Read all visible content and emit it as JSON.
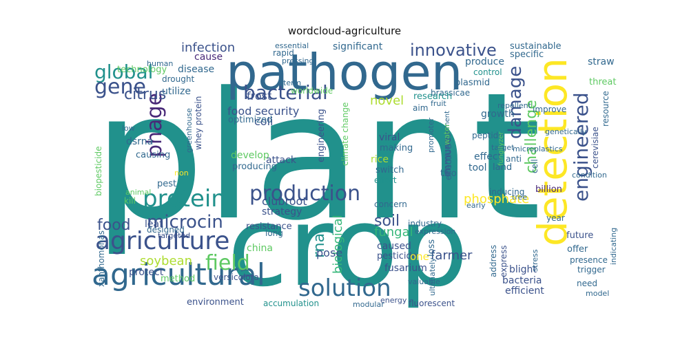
{
  "title": "wordcloud-agriculture",
  "colors": {
    "teal": "#21918c",
    "navy": "#3b528b",
    "purple": "#482878",
    "green": "#5ec962",
    "lime": "#addc30",
    "yellow": "#fde725",
    "blue": "#31688e",
    "seagreen": "#35b779"
  },
  "words": [
    {
      "text": "plant",
      "color": "#21918c"
    },
    {
      "text": "crop",
      "color": "#21918c"
    },
    {
      "text": "pathogen",
      "color": "#31688e"
    },
    {
      "text": "detection",
      "color": "#fde725"
    },
    {
      "text": "agricultural",
      "color": "#31688e"
    },
    {
      "text": "solution",
      "color": "#31688e"
    },
    {
      "text": "agriculture",
      "color": "#3b528b"
    },
    {
      "text": "production",
      "color": "#3b528b"
    },
    {
      "text": "protein",
      "color": "#21918c"
    },
    {
      "text": "bacterial",
      "color": "#3b528b"
    },
    {
      "text": "microcin",
      "color": "#3b528b"
    },
    {
      "text": "phage",
      "color": "#482878"
    },
    {
      "text": "global",
      "color": "#21918c"
    },
    {
      "text": "gene",
      "color": "#3b528b"
    },
    {
      "text": "field",
      "color": "#5ec962"
    },
    {
      "text": "engineered",
      "color": "#3b528b"
    },
    {
      "text": "damage",
      "color": "#3b528b"
    },
    {
      "text": "challenge",
      "color": "#5ec962"
    },
    {
      "text": "innovative",
      "color": "#3b528b"
    },
    {
      "text": "infection",
      "color": "#3b528b"
    },
    {
      "text": "citrus",
      "color": "#3b528b"
    },
    {
      "text": "phosphate",
      "color": "#fde725"
    },
    {
      "text": "soil",
      "color": "#3b528b"
    },
    {
      "text": "food",
      "color": "#3b528b"
    },
    {
      "text": "soybean",
      "color": "#addc30"
    },
    {
      "text": "novel",
      "color": "#addc30"
    },
    {
      "text": "rna",
      "color": "#21918c"
    },
    {
      "text": "biological",
      "color": "#35b779"
    },
    {
      "text": "fungal",
      "color": "#35b779"
    },
    {
      "text": "farmer",
      "color": "#3b528b"
    },
    {
      "text": "food security",
      "color": "#3b528b"
    },
    {
      "text": "frost",
      "color": "#3b528b"
    },
    {
      "text": "coli",
      "color": "#3b528b"
    },
    {
      "text": "clubroot",
      "color": "#3b528b"
    },
    {
      "text": "significant",
      "color": "#31688e"
    },
    {
      "text": "technology",
      "color": "#5ec962"
    },
    {
      "text": "disease",
      "color": "#31688e"
    },
    {
      "text": "cause",
      "color": "#482878"
    },
    {
      "text": "utilize",
      "color": "#31688e"
    },
    {
      "text": "sustainable",
      "color": "#31688e"
    },
    {
      "text": "specific",
      "color": "#31688e"
    },
    {
      "text": "straw",
      "color": "#31688e"
    },
    {
      "text": "produce",
      "color": "#31688e"
    },
    {
      "text": "control",
      "color": "#21918c"
    },
    {
      "text": "plasmid",
      "color": "#31688e"
    },
    {
      "text": "brassicae",
      "color": "#31688e"
    },
    {
      "text": "research",
      "color": "#21918c"
    },
    {
      "text": "growth",
      "color": "#31688e"
    },
    {
      "text": "threat",
      "color": "#5ec962"
    },
    {
      "text": "resource",
      "color": "#31688e"
    },
    {
      "text": "cerevisiae",
      "color": "#3b528b"
    },
    {
      "text": "genetically",
      "color": "#31688e"
    },
    {
      "text": "improve",
      "color": "#31688e"
    },
    {
      "text": "optimized",
      "color": "#31688e"
    },
    {
      "text": "dsrna",
      "color": "#31688e"
    },
    {
      "text": "causing",
      "color": "#31688e"
    },
    {
      "text": "develop",
      "color": "#5ec962"
    },
    {
      "text": "producing",
      "color": "#31688e"
    },
    {
      "text": "greenhouse",
      "color": "#31688e"
    },
    {
      "text": "attack",
      "color": "#3b528b"
    },
    {
      "text": "engineering",
      "color": "#3b528b"
    },
    {
      "text": "climate change",
      "color": "#5ec962"
    },
    {
      "text": "rice",
      "color": "#addc30"
    },
    {
      "text": "switch",
      "color": "#31688e"
    },
    {
      "text": "effort",
      "color": "#21918c"
    },
    {
      "text": "viral",
      "color": "#3b528b"
    },
    {
      "text": "making",
      "color": "#31688e"
    },
    {
      "text": "immune",
      "color": "#3b528b"
    },
    {
      "text": "two",
      "color": "#31688e"
    },
    {
      "text": "effect",
      "color": "#31688e"
    },
    {
      "text": "tool",
      "color": "#31688e"
    },
    {
      "text": "land",
      "color": "#31688e"
    },
    {
      "text": "peptide",
      "color": "#31688e"
    },
    {
      "text": "target",
      "color": "#31688e"
    },
    {
      "text": "cell",
      "color": "#31688e"
    },
    {
      "text": "tree",
      "color": "#31688e"
    },
    {
      "text": "billion",
      "color": "#482878"
    },
    {
      "text": "condition",
      "color": "#31688e"
    },
    {
      "text": "inducing",
      "color": "#31688e"
    },
    {
      "text": "early",
      "color": "#31688e"
    },
    {
      "text": "industry",
      "color": "#31688e"
    },
    {
      "text": "concern",
      "color": "#31688e"
    },
    {
      "text": "strategy",
      "color": "#3b528b"
    },
    {
      "text": "resistance",
      "color": "#3b528b"
    },
    {
      "text": "long",
      "color": "#31688e"
    },
    {
      "text": "leaf",
      "color": "#3b528b"
    },
    {
      "text": "designed",
      "color": "#31688e"
    },
    {
      "text": "targeted",
      "color": "#3b528b"
    },
    {
      "text": "china",
      "color": "#5ec962"
    },
    {
      "text": "pose",
      "color": "#3b528b"
    },
    {
      "text": "caused",
      "color": "#3b528b"
    },
    {
      "text": "pesticide",
      "color": "#3b528b"
    },
    {
      "text": "fusarium",
      "color": "#3b528b"
    },
    {
      "text": "protect",
      "color": "#3b528b"
    },
    {
      "text": "method",
      "color": "#5ec962"
    },
    {
      "text": "versicolora",
      "color": "#3b528b"
    },
    {
      "text": "environment",
      "color": "#3b528b"
    },
    {
      "text": "accumulation",
      "color": "#21918c"
    },
    {
      "text": "modular",
      "color": "#31688e"
    },
    {
      "text": "energy",
      "color": "#3b528b"
    },
    {
      "text": "fluorescent",
      "color": "#3b528b"
    },
    {
      "text": "efficient",
      "color": "#3b528b"
    },
    {
      "text": "bacteria",
      "color": "#3b528b"
    },
    {
      "text": "blight",
      "color": "#3b528b"
    },
    {
      "text": "valuable",
      "color": "#31688e"
    },
    {
      "text": "one",
      "color": "#fde725"
    },
    {
      "text": "expression",
      "color": "#31688e"
    },
    {
      "text": "loss",
      "color": "#31688e"
    },
    {
      "text": "ultimately",
      "color": "#31688e"
    },
    {
      "text": "address",
      "color": "#31688e"
    },
    {
      "text": "express",
      "color": "#3b528b"
    },
    {
      "text": "stress",
      "color": "#31688e"
    },
    {
      "text": "future",
      "color": "#3b528b"
    },
    {
      "text": "offer",
      "color": "#31688e"
    },
    {
      "text": "presence",
      "color": "#31688e"
    },
    {
      "text": "trigger",
      "color": "#31688e"
    },
    {
      "text": "need",
      "color": "#31688e"
    },
    {
      "text": "model",
      "color": "#31688e"
    },
    {
      "text": "indicating",
      "color": "#31688e"
    },
    {
      "text": "year",
      "color": "#31688e"
    },
    {
      "text": "xanthomonas",
      "color": "#31688e"
    },
    {
      "text": "kill",
      "color": "#5ec962"
    },
    {
      "text": "pest",
      "color": "#31688e"
    },
    {
      "text": "animal",
      "color": "#5ec962"
    },
    {
      "text": "biopesticide",
      "color": "#5ec962"
    },
    {
      "text": "low",
      "color": "#31688e"
    },
    {
      "text": "drought",
      "color": "#31688e"
    },
    {
      "text": "human",
      "color": "#31688e"
    },
    {
      "text": "essential",
      "color": "#31688e"
    },
    {
      "text": "rapid",
      "color": "#31688e"
    },
    {
      "text": "pressing",
      "color": "#31688e"
    },
    {
      "text": "term",
      "color": "#31688e"
    },
    {
      "text": "worldwide",
      "color": "#5ec962"
    },
    {
      "text": "fruit",
      "color": "#31688e"
    },
    {
      "text": "aim",
      "color": "#31688e"
    },
    {
      "text": "repellent",
      "color": "#31688e"
    },
    {
      "text": "promoter",
      "color": "#31688e"
    },
    {
      "text": "management",
      "color": "#31688e"
    },
    {
      "text": "water",
      "color": "#5ec962"
    },
    {
      "text": "anti",
      "color": "#31688e"
    },
    {
      "text": "microplastics",
      "color": "#31688e"
    },
    {
      "text": "fungilyzer",
      "color": "#5ec962"
    },
    {
      "text": "whey protein",
      "color": "#3b528b"
    },
    {
      "text": "non",
      "color": "#fde725"
    },
    {
      "text": "effective",
      "color": "#31688e"
    }
  ]
}
